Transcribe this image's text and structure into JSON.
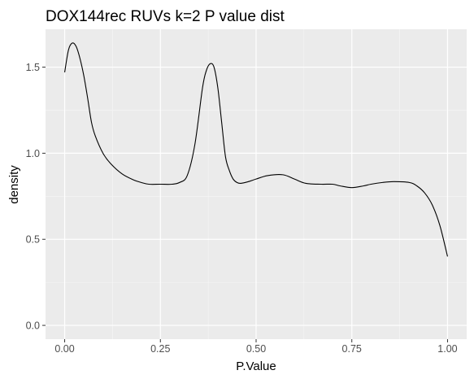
{
  "chart_data": {
    "type": "line",
    "title": "DOX144rec RUVs k=2 P value dist",
    "xlabel": "P.Value",
    "ylabel": "density",
    "xlim": [
      -0.05,
      1.05
    ],
    "ylim": [
      -0.08,
      1.72
    ],
    "x_ticks": [
      0.0,
      0.25,
      0.5,
      0.75,
      1.0
    ],
    "x_tick_labels": [
      "0.00",
      "0.25",
      "0.50",
      "0.75",
      "1.00"
    ],
    "y_ticks": [
      0.0,
      0.5,
      1.0,
      1.5
    ],
    "y_tick_labels": [
      "0.0",
      "0.5",
      "1.0",
      "1.5"
    ],
    "grid": true,
    "background": "#ebebeb",
    "line_color": "#000000",
    "series": [
      {
        "x": [
          0.0,
          0.01,
          0.02,
          0.03,
          0.04,
          0.05,
          0.06,
          0.07,
          0.08,
          0.1,
          0.12,
          0.15,
          0.18,
          0.2,
          0.22,
          0.25,
          0.28,
          0.3,
          0.32,
          0.34,
          0.36,
          0.37,
          0.38,
          0.39,
          0.4,
          0.41,
          0.42,
          0.43,
          0.44,
          0.45,
          0.46,
          0.48,
          0.5,
          0.53,
          0.57,
          0.6,
          0.63,
          0.67,
          0.7,
          0.72,
          0.75,
          0.78,
          0.8,
          0.83,
          0.86,
          0.9,
          0.92,
          0.94,
          0.96,
          0.98,
          1.0
        ],
        "y": [
          1.47,
          1.6,
          1.64,
          1.62,
          1.55,
          1.45,
          1.32,
          1.18,
          1.1,
          1.0,
          0.94,
          0.88,
          0.845,
          0.83,
          0.82,
          0.82,
          0.82,
          0.83,
          0.87,
          1.05,
          1.38,
          1.48,
          1.52,
          1.5,
          1.38,
          1.18,
          0.98,
          0.9,
          0.85,
          0.83,
          0.825,
          0.835,
          0.85,
          0.87,
          0.875,
          0.85,
          0.825,
          0.82,
          0.82,
          0.81,
          0.8,
          0.81,
          0.82,
          0.83,
          0.835,
          0.83,
          0.81,
          0.77,
          0.7,
          0.58,
          0.4
        ]
      }
    ]
  }
}
